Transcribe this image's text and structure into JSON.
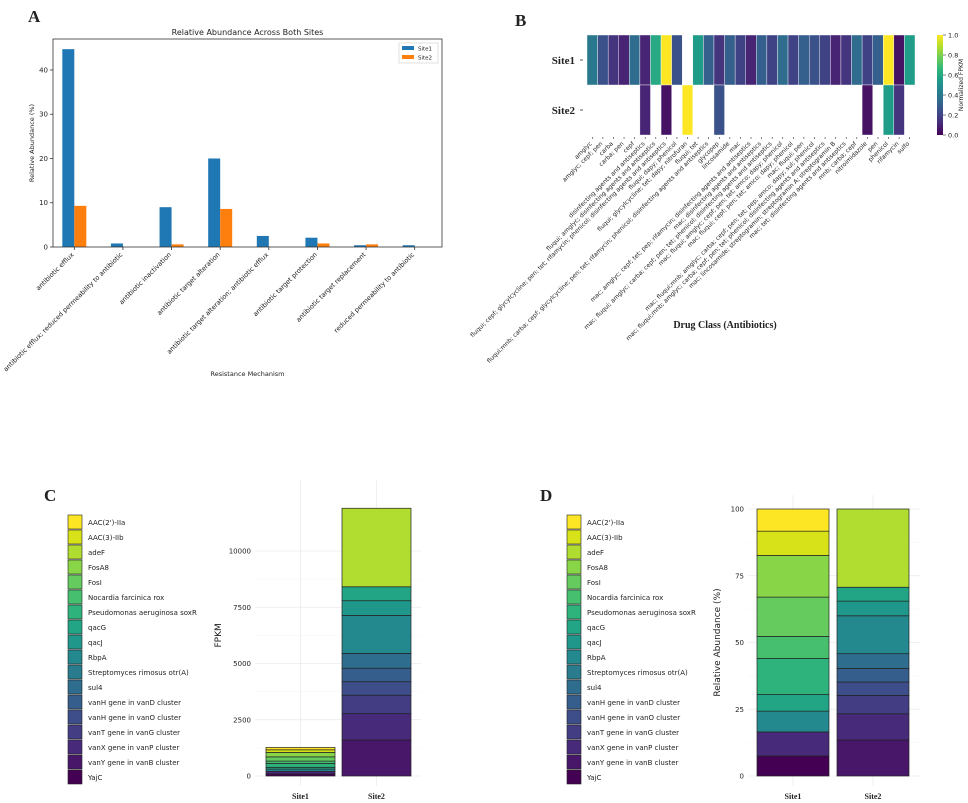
{
  "panels": {
    "a": "A",
    "b": "B",
    "c": "C",
    "d": "D"
  },
  "chart_data": [
    {
      "type": "bar",
      "title": "Relative Abundance Across Both Sites",
      "xlabel": "Resistance Mechanism",
      "ylabel": "Relative Abundance (%)",
      "ylim": [
        0,
        47
      ],
      "yticks": [
        0,
        10,
        20,
        30,
        40
      ],
      "legend_position": "top-right",
      "categories": [
        "antibiotic efflux",
        "antibiotic efflux; reduced permeability to antibiotic",
        "antibiotic inactivation",
        "antibiotic target alteration",
        "antibiotic target alteration; antibiotic efflux",
        "antibiotic target protection",
        "antibiotic target replacement",
        "reduced permeability to antibiotic"
      ],
      "series": [
        {
          "name": "Site1",
          "color": "#1f77b4",
          "values": [
            44.7,
            0.8,
            9.0,
            20.0,
            2.5,
            2.1,
            0.4,
            0.4
          ]
        },
        {
          "name": "Site2",
          "color": "#ff7f0e",
          "values": [
            9.3,
            0,
            0.6,
            8.6,
            0,
            0.8,
            0.6,
            0
          ]
        }
      ]
    },
    {
      "type": "heatmap",
      "xlabel": "Drug Class (Antibiotics)",
      "rows": [
        "Site1",
        "Site2"
      ],
      "colorbar_label": "Normalized FPKM",
      "colorbar_ticks": [
        0.0,
        0.2,
        0.4,
        0.6,
        0.8,
        1.0
      ],
      "colormap": "viridis",
      "columns": [
        "amglyc",
        "amglyc; cepf; pen",
        "carba",
        "carba; pen",
        "cepf",
        "disinfecting agents and antiseptics",
        "fluqui; amglyc; disinfecting agents and antiseptics",
        "fluqui; cepf; glycylcycline; pen; tet; rifamycin; phenicol; disinfecting agents and antiseptics",
        "fluqui; dapy; phenicol",
        "fluqui; glycylcycline; tet; dapy; nitrofuran",
        "fluqui; tet",
        "fluqui;mnb; carba; cepf; glycylcycline; pen; tet; rifamycin; phenicol; disinfecting agents and antiseptics",
        "glycopep",
        "lincosamide",
        "mac",
        "mac; amglyc; cepf; tet; pep; rifamycin; disinfecting agents and antiseptics",
        "mac; disinfecting agents and antiseptics",
        "mac; fluqui; amglyc; carba; cepf; pen; tet; phenicol; disinfecting agents and antiseptics",
        "mac; fluqui; amglyc; cepf; pen; tet; amco; dapy; phenicol",
        "mac; fluqui; cepf; pen; tet; amco; dapy; phenicol",
        "mac; fluqui; pen",
        "mac; fluqui;mnb; amglyc; carba; cepf; pen; tet; pep; amco; dapy; sul; phenicol",
        "mac; fluqui;mnb; amglyc; carba; cepf; pen; tet; phenicol; disinfecting agents and antiseptics",
        "mac; lincosamide; streptogramin; streptogramin A; streptogramin B",
        "mac; tet; disinfecting agents and antiseptics",
        "mnb; carba; cepf",
        "nitroimidazole",
        "pen",
        "phenicol",
        "rifamycin",
        "sulfo"
      ],
      "values": [
        [
          0.4,
          0.25,
          0.15,
          0.1,
          0.35,
          0.1,
          0.6,
          1.0,
          0.25,
          null,
          0.55,
          0.3,
          0.15,
          0.3,
          0.2,
          0.1,
          0.3,
          0.2,
          0.35,
          0.2,
          0.3,
          0.25,
          0.2,
          0.1,
          0.15,
          0.35,
          0.2,
          0.3,
          1.0,
          0.05,
          0.55
        ],
        [
          null,
          null,
          null,
          null,
          null,
          0.1,
          null,
          0.05,
          null,
          1.0,
          null,
          null,
          0.25,
          null,
          null,
          null,
          null,
          null,
          null,
          null,
          null,
          null,
          null,
          null,
          null,
          null,
          0.05,
          null,
          0.55,
          0.15,
          null
        ]
      ]
    },
    {
      "type": "bar",
      "stacked": true,
      "ylabel": "FPKM",
      "ylim": [
        0,
        12500
      ],
      "yticks": [
        0,
        2500,
        5000,
        7500,
        10000
      ],
      "categories": [
        "Site1",
        "Site2"
      ],
      "series_ref": "genes",
      "values_by_gene": {
        "AAC(2')-IIa": [
          105,
          0
        ],
        "AAC(3)-IIb": [
          116,
          0
        ],
        "adeF": [
          0,
          3490
        ],
        "FosA8": [
          198,
          0
        ],
        "FosI": [
          187,
          0
        ],
        "Nocardia farcinica rox": [
          105,
          0
        ],
        "Pseudomonas aeruginosa soxR": [
          171,
          0
        ],
        "qacG": [
          79,
          620
        ],
        "qacJ": [
          0,
          650
        ],
        "RbpA": [
          99,
          1690
        ],
        "Streptomyces rimosus otr(A)": [
          0,
          0
        ],
        "sul4": [
          0,
          660
        ],
        "vanH gene in vanD cluster": [
          0,
          600
        ],
        "vanH gene in vanO cluster": [
          0,
          600
        ],
        "vanT gene in vanG cluster": [
          0,
          820
        ],
        "vanX gene in vanP cluster": [
          114,
          1170
        ],
        "vanY gene in vanB cluster": [
          0,
          1600
        ],
        "YajC": [
          95,
          0
        ]
      }
    },
    {
      "type": "bar",
      "stacked": true,
      "ylabel": "Relative Abundance (%)",
      "ylim": [
        0,
        100
      ],
      "yticks": [
        0,
        25,
        50,
        75,
        100
      ],
      "categories": [
        "Site1",
        "Site2"
      ],
      "series_ref": "genes",
      "values_by_gene": {
        "AAC(2')-IIa": [
          8.3,
          0
        ],
        "AAC(3)-IIb": [
          9.1,
          0
        ],
        "adeF": [
          0,
          29.3
        ],
        "FosA8": [
          15.6,
          0
        ],
        "FosI": [
          14.7,
          0
        ],
        "Nocardia farcinica rox": [
          8.3,
          0
        ],
        "Pseudomonas aeruginosa soxR": [
          13.5,
          0
        ],
        "qacG": [
          6.2,
          5.2
        ],
        "qacJ": [
          0,
          5.5
        ],
        "RbpA": [
          7.8,
          14.2
        ],
        "Streptomyces rimosus otr(A)": [
          0,
          0
        ],
        "sul4": [
          0,
          5.5
        ],
        "vanH gene in vanD cluster": [
          0,
          5.1
        ],
        "vanH gene in vanO cluster": [
          0,
          5.0
        ],
        "vanT gene in vanG cluster": [
          0,
          6.9
        ],
        "vanX gene in vanP cluster": [
          9.0,
          9.8
        ],
        "vanY gene in vanB cluster": [
          0,
          13.5
        ],
        "YajC": [
          7.5,
          0
        ]
      }
    }
  ],
  "genes": [
    {
      "name": "AAC(2')-IIa",
      "color": "#fde725"
    },
    {
      "name": "AAC(3)-IIb",
      "color": "#d8e219"
    },
    {
      "name": "adeF",
      "color": "#b0dd2f"
    },
    {
      "name": "FosA8",
      "color": "#89d548"
    },
    {
      "name": "FosI",
      "color": "#65cb5e"
    },
    {
      "name": "Nocardia farcinica rox",
      "color": "#46c06f"
    },
    {
      "name": "Pseudomonas aeruginosa soxR",
      "color": "#2eb37c"
    },
    {
      "name": "qacG",
      "color": "#21a585"
    },
    {
      "name": "qacJ",
      "color": "#1f978b"
    },
    {
      "name": "RbpA",
      "color": "#23898e"
    },
    {
      "name": "Streptomyces rimosus otr(A)",
      "color": "#297b8e"
    },
    {
      "name": "sul4",
      "color": "#2e6d8e"
    },
    {
      "name": "vanH gene in vanD cluster",
      "color": "#355e8d"
    },
    {
      "name": "vanH gene in vanO cluster",
      "color": "#3d4e8a"
    },
    {
      "name": "vanT gene in vanG cluster",
      "color": "#433d84"
    },
    {
      "name": "vanX gene in vanP cluster",
      "color": "#472a7a"
    },
    {
      "name": "vanY gene in vanB cluster",
      "color": "#481769"
    },
    {
      "name": "YajC",
      "color": "#440154"
    }
  ]
}
